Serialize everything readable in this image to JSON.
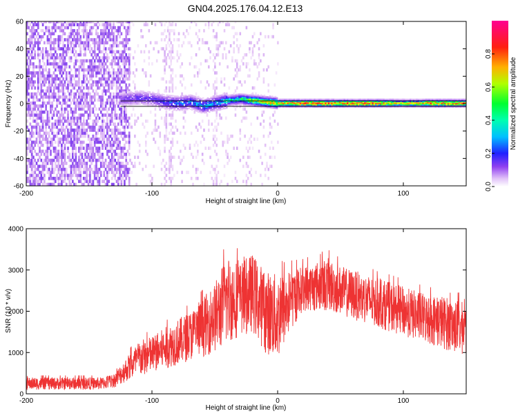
{
  "figure_title": "GN04.2025.176.04.12.E13",
  "colors": {
    "snr_line": "#ee3333",
    "ridge": "#ff3333",
    "colormap": [
      "#ffffff",
      "#e8cbf6",
      "#b77df0",
      "#8040f0",
      "#3020ff",
      "#00e0ff",
      "#00ff40",
      "#e0ff00",
      "#ff8000",
      "#ff2020",
      "#ff00a0"
    ]
  },
  "chart_data": [
    {
      "type": "heatmap",
      "title": "",
      "xlabel": "Height of straight line (km)",
      "ylabel": "Frequency (Hz)",
      "xlim": [
        -200,
        150
      ],
      "ylim": [
        -60,
        60
      ],
      "x_ticks": [
        -200,
        -100,
        0,
        100
      ],
      "y_ticks": [
        -60,
        -40,
        -20,
        0,
        20,
        40,
        60
      ],
      "colorbar": {
        "label": "Normalized spectral amplitude",
        "range": [
          0,
          1
        ],
        "ticks": [
          0.0,
          0.2,
          0.4,
          0.6,
          0.8
        ]
      },
      "regions": [
        {
          "x_range": [
            -200,
            -118
          ],
          "description": "broadband noise, amplitude 0.1-0.3 across all frequencies"
        },
        {
          "x_range": [
            -118,
            0
          ],
          "description": "sparse faint noise, amplitude 0.05-0.15"
        },
        {
          "x_range": [
            -125,
            150
          ],
          "description": "narrow spectral ridge near 0 Hz, amplitude rising from 0.3 to 0.9"
        }
      ],
      "ridge": {
        "x": [
          -125,
          -110,
          -100,
          -90,
          -80,
          -70,
          -60,
          -50,
          -40,
          -30,
          -20,
          -10,
          0,
          20,
          40,
          60,
          80,
          100,
          120,
          150
        ],
        "center_hz": [
          3,
          4,
          3,
          1,
          0,
          1,
          -2,
          0,
          2,
          3,
          2,
          1,
          0,
          0,
          0,
          0,
          0,
          0,
          0,
          0
        ],
        "amplitude": [
          0.3,
          0.35,
          0.35,
          0.4,
          0.45,
          0.45,
          0.5,
          0.5,
          0.55,
          0.6,
          0.7,
          0.75,
          0.8,
          0.85,
          0.85,
          0.85,
          0.85,
          0.7,
          0.85,
          0.85
        ]
      },
      "lines_hz": [
        2,
        -2
      ]
    },
    {
      "type": "line",
      "title": "",
      "xlabel": "Height of straight line (km)",
      "ylabel": "SNR (10 * v/v)",
      "xlim": [
        -200,
        150
      ],
      "ylim": [
        0,
        4000
      ],
      "x_ticks": [
        -200,
        -100,
        0,
        100
      ],
      "y_ticks": [
        0,
        1000,
        2000,
        3000,
        4000
      ],
      "envelope": {
        "x": [
          -200,
          -140,
          -130,
          -120,
          -110,
          -100,
          -90,
          -80,
          -70,
          -60,
          -50,
          -40,
          -30,
          -20,
          -10,
          0,
          10,
          20,
          30,
          40,
          50,
          60,
          70,
          80,
          90,
          100,
          110,
          120,
          130,
          140,
          150
        ],
        "low": [
          100,
          100,
          150,
          300,
          400,
          500,
          600,
          700,
          800,
          900,
          1000,
          1200,
          1400,
          1500,
          1000,
          800,
          1500,
          2000,
          2000,
          2000,
          1900,
          1800,
          1700,
          1600,
          1500,
          1400,
          1300,
          1200,
          1100,
          1000,
          900
        ],
        "high": [
          400,
          400,
          500,
          900,
          1300,
          1400,
          1600,
          1800,
          2000,
          2300,
          2700,
          3400,
          3200,
          3400,
          3000,
          2900,
          3000,
          3100,
          3200,
          3300,
          3100,
          3000,
          2900,
          2800,
          2700,
          2600,
          2500,
          2400,
          2400,
          2300,
          2200
        ]
      }
    }
  ]
}
